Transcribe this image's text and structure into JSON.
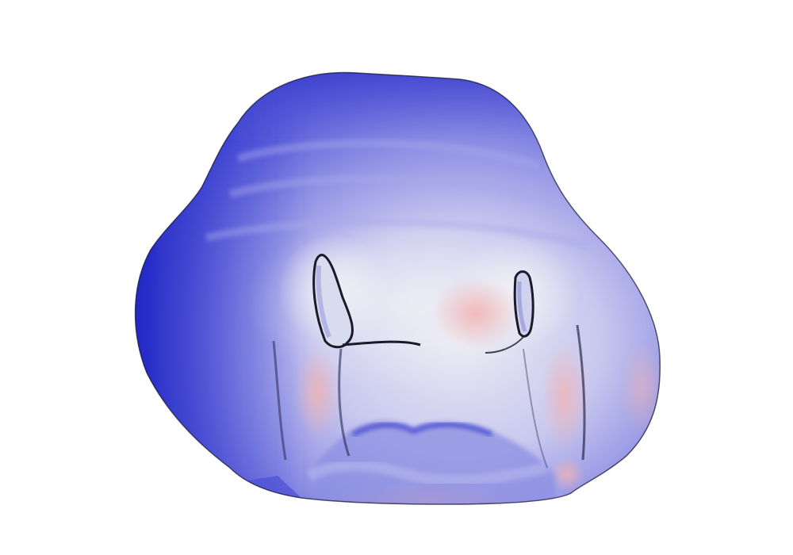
{
  "scene": {
    "background": "#ffffff",
    "subject": "3d-surface-mesh",
    "colormap": {
      "low": "#1a22c8",
      "mid": "#f2f2f4",
      "high": "#f2b0b0"
    }
  }
}
